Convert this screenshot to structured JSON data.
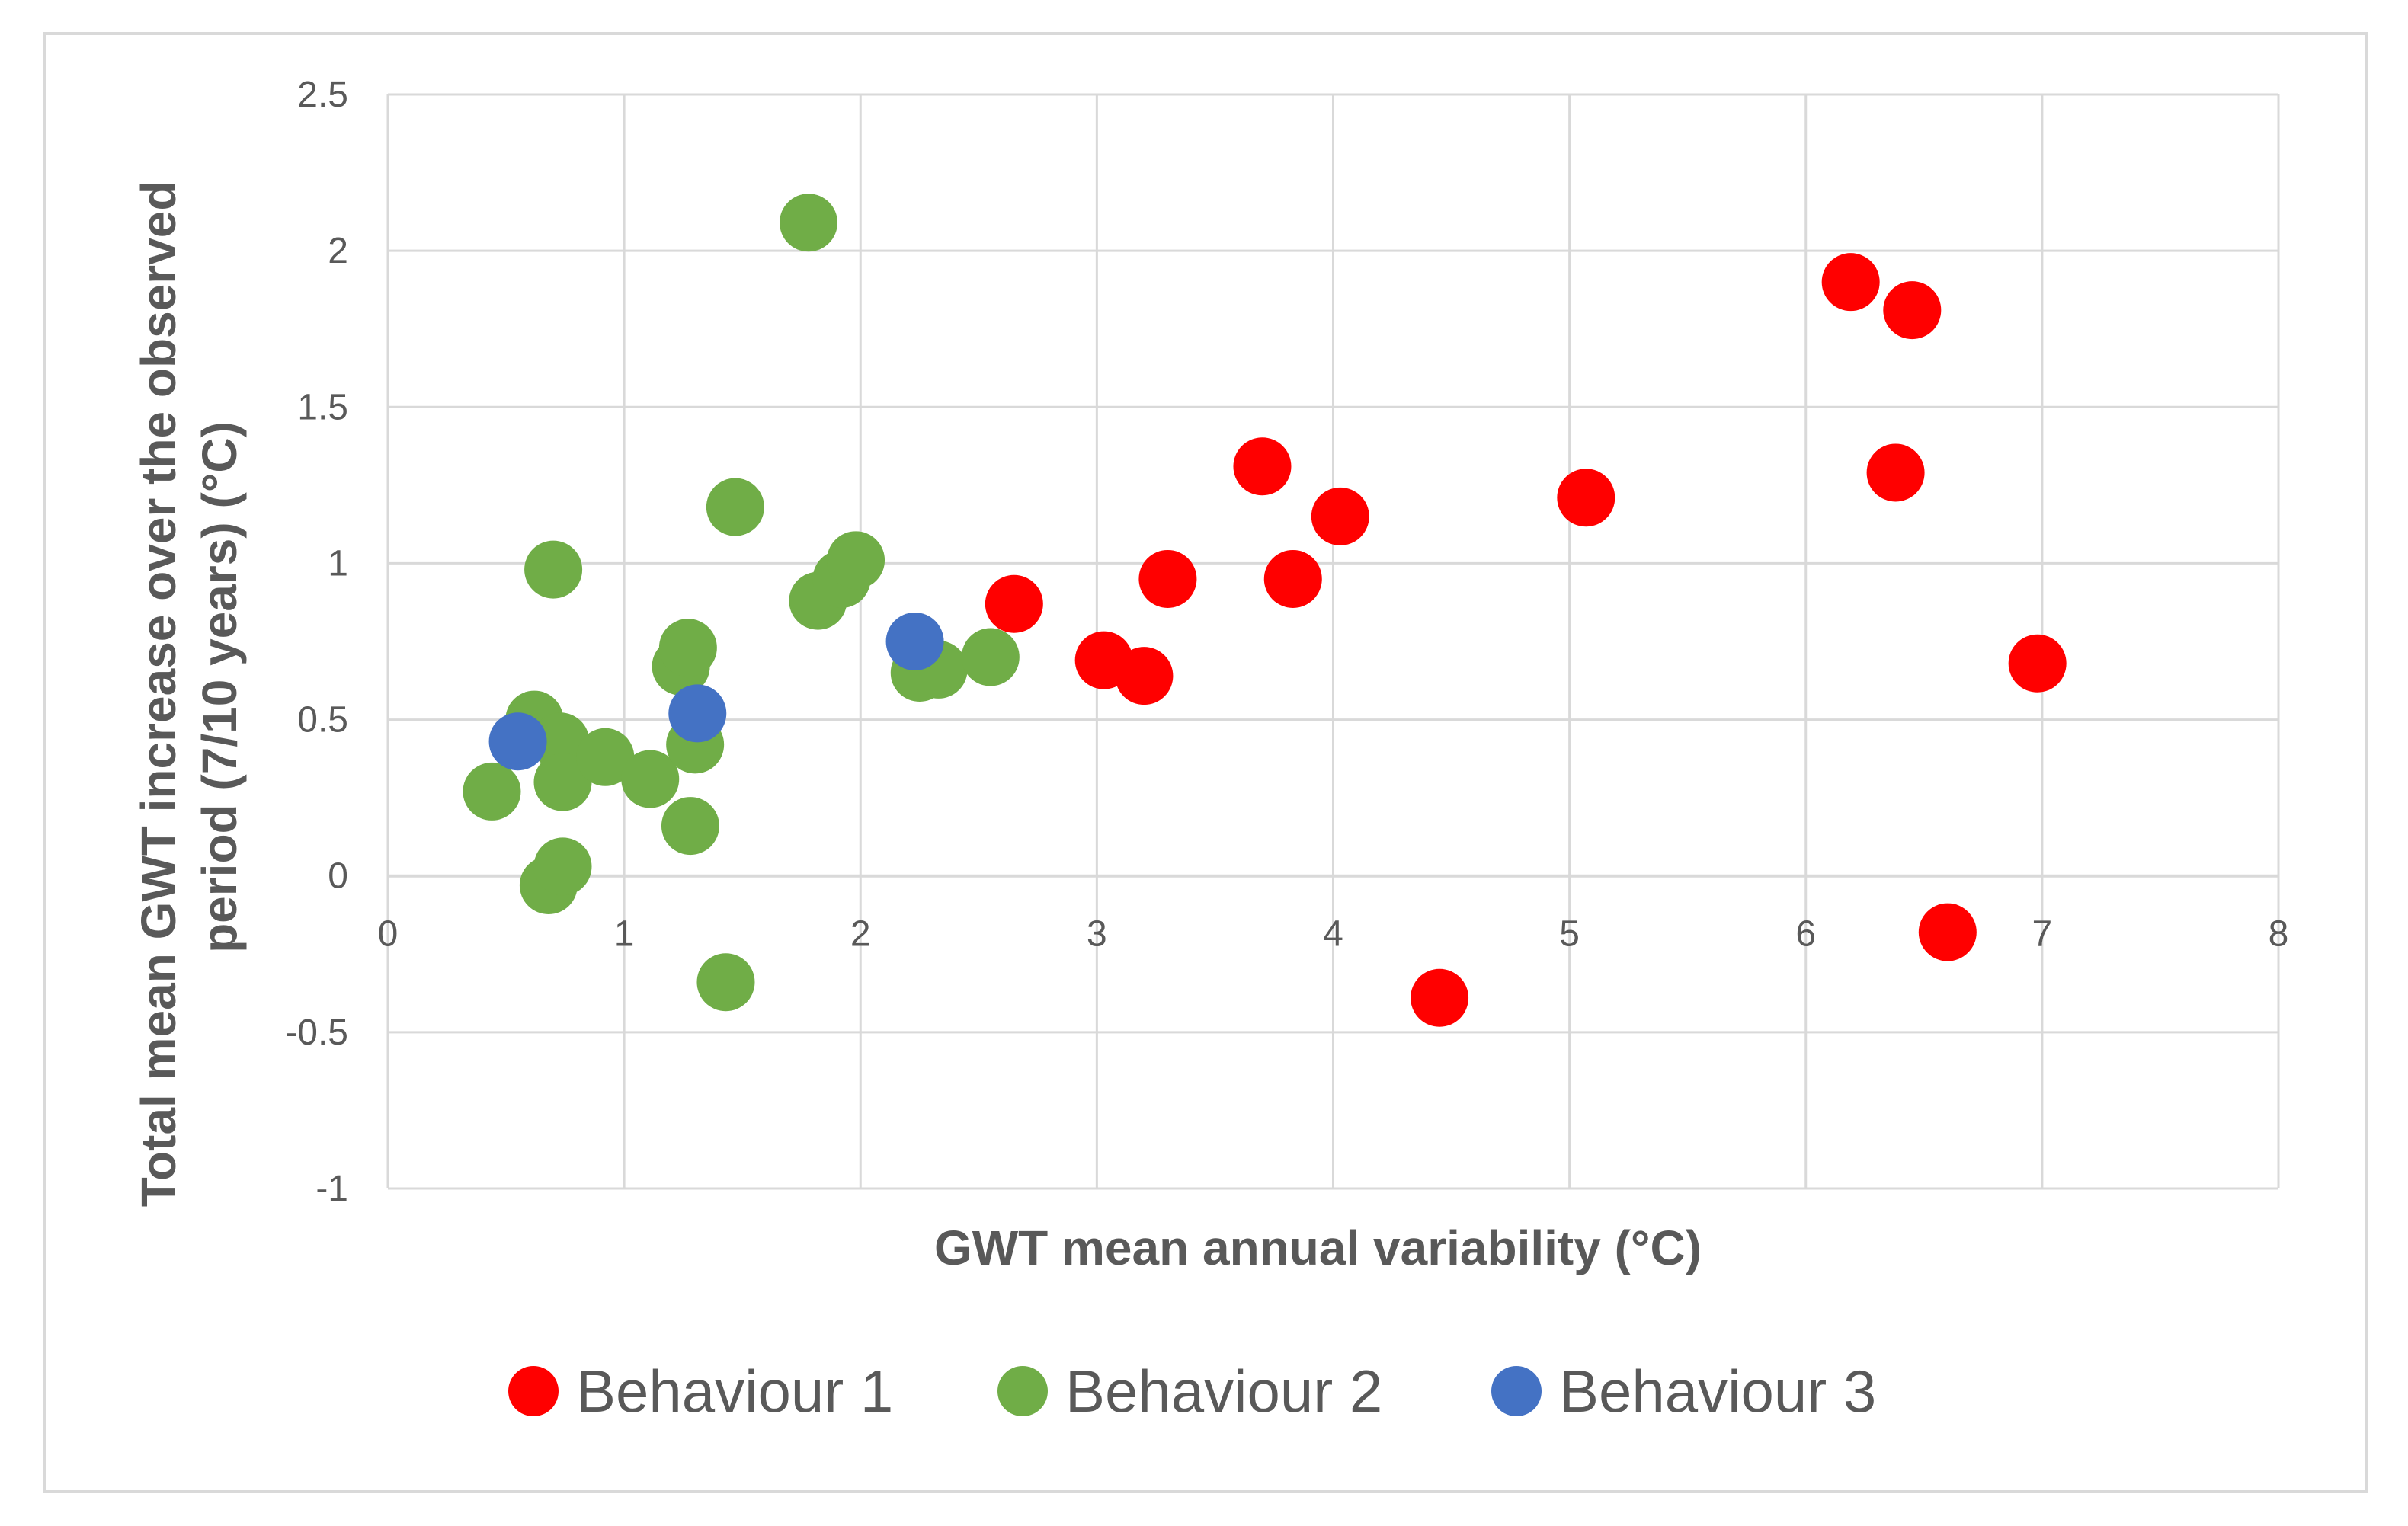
{
  "chart_data": {
    "type": "scatter",
    "title": "",
    "xlabel": "GWT mean annual variability (°C)",
    "ylabel_line1": "Total mean GWT increase over the observed",
    "ylabel_line2": "period (7/10 years) (°C)",
    "xlim": [
      0,
      8
    ],
    "ylim": [
      -1,
      2.5
    ],
    "x_ticks": [
      "0",
      "1",
      "2",
      "3",
      "4",
      "5",
      "6",
      "7",
      "8"
    ],
    "y_ticks": [
      "-1",
      "-0.5",
      "0",
      "0.5",
      "1",
      "1.5",
      "2",
      "2.5"
    ],
    "grid": true,
    "legend_position": "bottom",
    "series": [
      {
        "name": "Behaviour 1",
        "color": "#ff0000",
        "points": [
          [
            2.65,
            0.87
          ],
          [
            3.03,
            0.69
          ],
          [
            3.2,
            0.64
          ],
          [
            3.3,
            0.95
          ],
          [
            3.7,
            1.31
          ],
          [
            3.83,
            0.95
          ],
          [
            4.03,
            1.15
          ],
          [
            4.45,
            -0.39
          ],
          [
            5.07,
            1.21
          ],
          [
            6.19,
            1.9
          ],
          [
            6.45,
            1.81
          ],
          [
            6.38,
            1.29
          ],
          [
            6.6,
            -0.18
          ],
          [
            6.98,
            0.68
          ]
        ]
      },
      {
        "name": "Behaviour 2",
        "color": "#70ad47",
        "points": [
          [
            0.44,
            0.27
          ],
          [
            0.62,
            0.5
          ],
          [
            0.68,
            -0.03
          ],
          [
            0.7,
            0.98
          ],
          [
            0.73,
            0.43
          ],
          [
            0.74,
            0.3
          ],
          [
            0.74,
            0.03
          ],
          [
            0.92,
            0.38
          ],
          [
            1.11,
            0.31
          ],
          [
            1.24,
            0.67
          ],
          [
            1.27,
            0.73
          ],
          [
            1.28,
            0.16
          ],
          [
            1.3,
            0.42
          ],
          [
            1.43,
            -0.34
          ],
          [
            1.47,
            1.18
          ],
          [
            1.78,
            2.09
          ],
          [
            1.82,
            0.88
          ],
          [
            1.92,
            0.95
          ],
          [
            1.98,
            1.01
          ],
          [
            2.25,
            0.65
          ],
          [
            2.33,
            0.66
          ],
          [
            2.55,
            0.7
          ]
        ]
      },
      {
        "name": "Behaviour 3",
        "color": "#4472c4",
        "points": [
          [
            0.55,
            0.43
          ],
          [
            1.31,
            0.52
          ],
          [
            2.23,
            0.75
          ]
        ]
      }
    ]
  }
}
